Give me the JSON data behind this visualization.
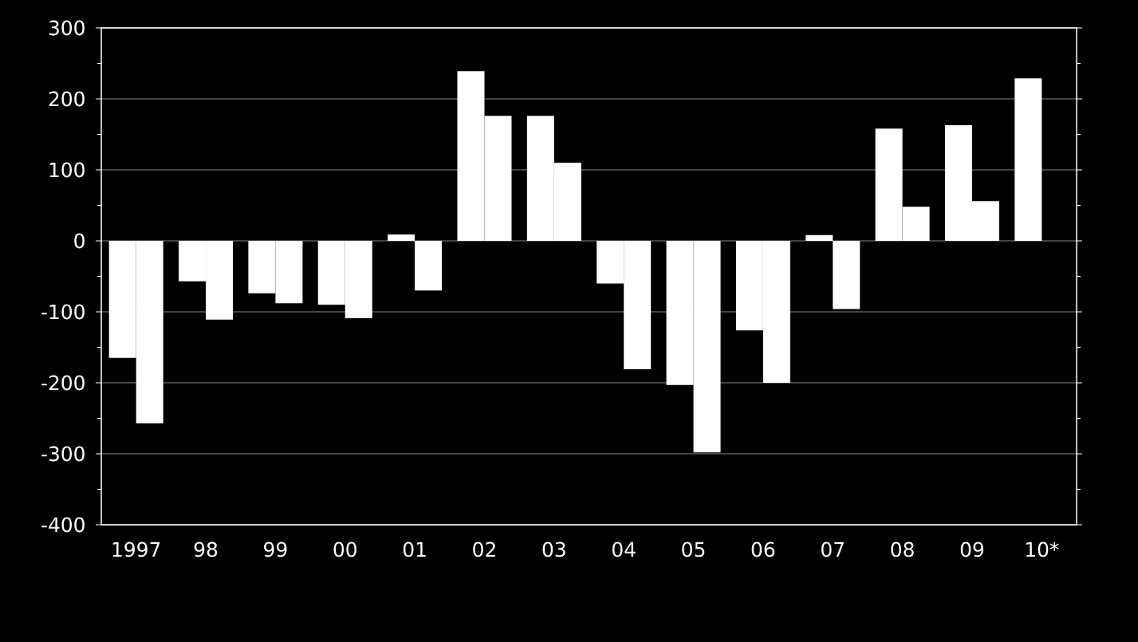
{
  "chart_data": {
    "type": "bar",
    "categories": [
      "1997",
      "98",
      "99",
      "00",
      "01",
      "02",
      "03",
      "04",
      "05",
      "06",
      "07",
      "08",
      "09",
      "10*"
    ],
    "series": [
      {
        "color": "#ffffff",
        "values": [
          -165,
          -57,
          -74,
          -90,
          9,
          239,
          176,
          -60,
          -203,
          -126,
          8,
          158,
          163,
          229
        ]
      },
      {
        "color": "#ffffff",
        "values": [
          -257,
          -111,
          -88,
          -109,
          -70,
          176,
          110,
          -181,
          -298,
          -200,
          -96,
          48,
          56,
          null
        ]
      }
    ],
    "ylim": [
      -400,
      300
    ],
    "yticks": [
      -400,
      -300,
      -200,
      -100,
      0,
      100,
      200,
      300
    ],
    "grid": "y"
  }
}
